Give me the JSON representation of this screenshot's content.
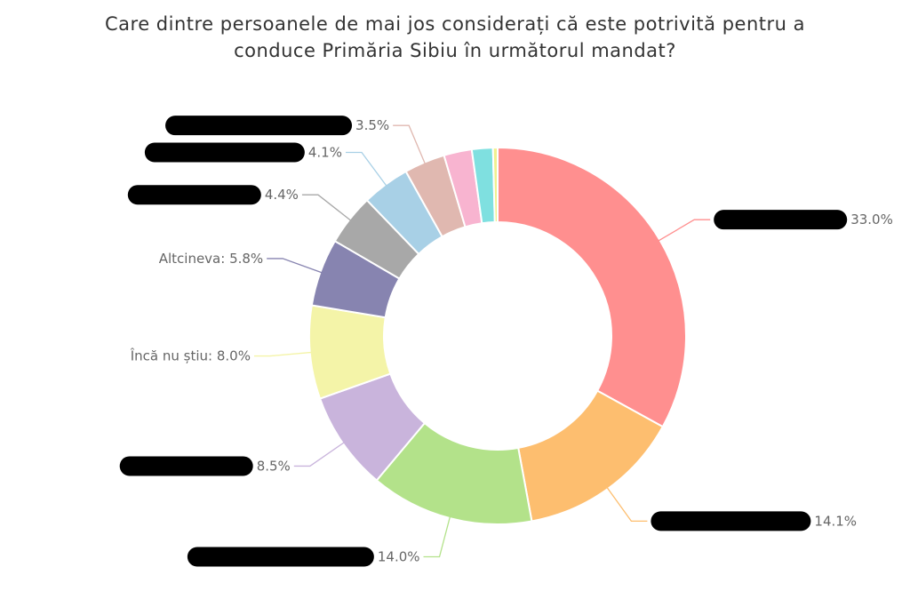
{
  "chart_data": {
    "type": "donut",
    "title": [
      "Care dintre persoanele de mai jos considerați că este potrivită pentru a",
      "conduce Primăria Sibiu în următorul mandat?"
    ],
    "categories": [
      null,
      null,
      null,
      null,
      "Încă nu știu",
      "Altcineva",
      null,
      null,
      null,
      null,
      null,
      null
    ],
    "values": [
      33.0,
      14.1,
      14.0,
      8.5,
      8.0,
      5.8,
      4.4,
      4.1,
      3.5,
      2.4,
      1.8,
      0.4
    ],
    "value_labels": [
      "33.0%",
      "14.1%",
      "14.0%",
      "8.5%",
      "8.0%",
      "5.8%",
      "4.4%",
      "4.1%",
      "3.5%",
      null,
      null,
      null
    ],
    "colors": [
      "#ff8f8f",
      "#fdbe6f",
      "#b3e28a",
      "#c9b4dc",
      "#f4f4a8",
      "#8784b0",
      "#a8a8a8",
      "#a8d0e6",
      "#e0b8b0",
      "#f8b4d0",
      "#7fe0e0",
      "#f0f090"
    ]
  }
}
